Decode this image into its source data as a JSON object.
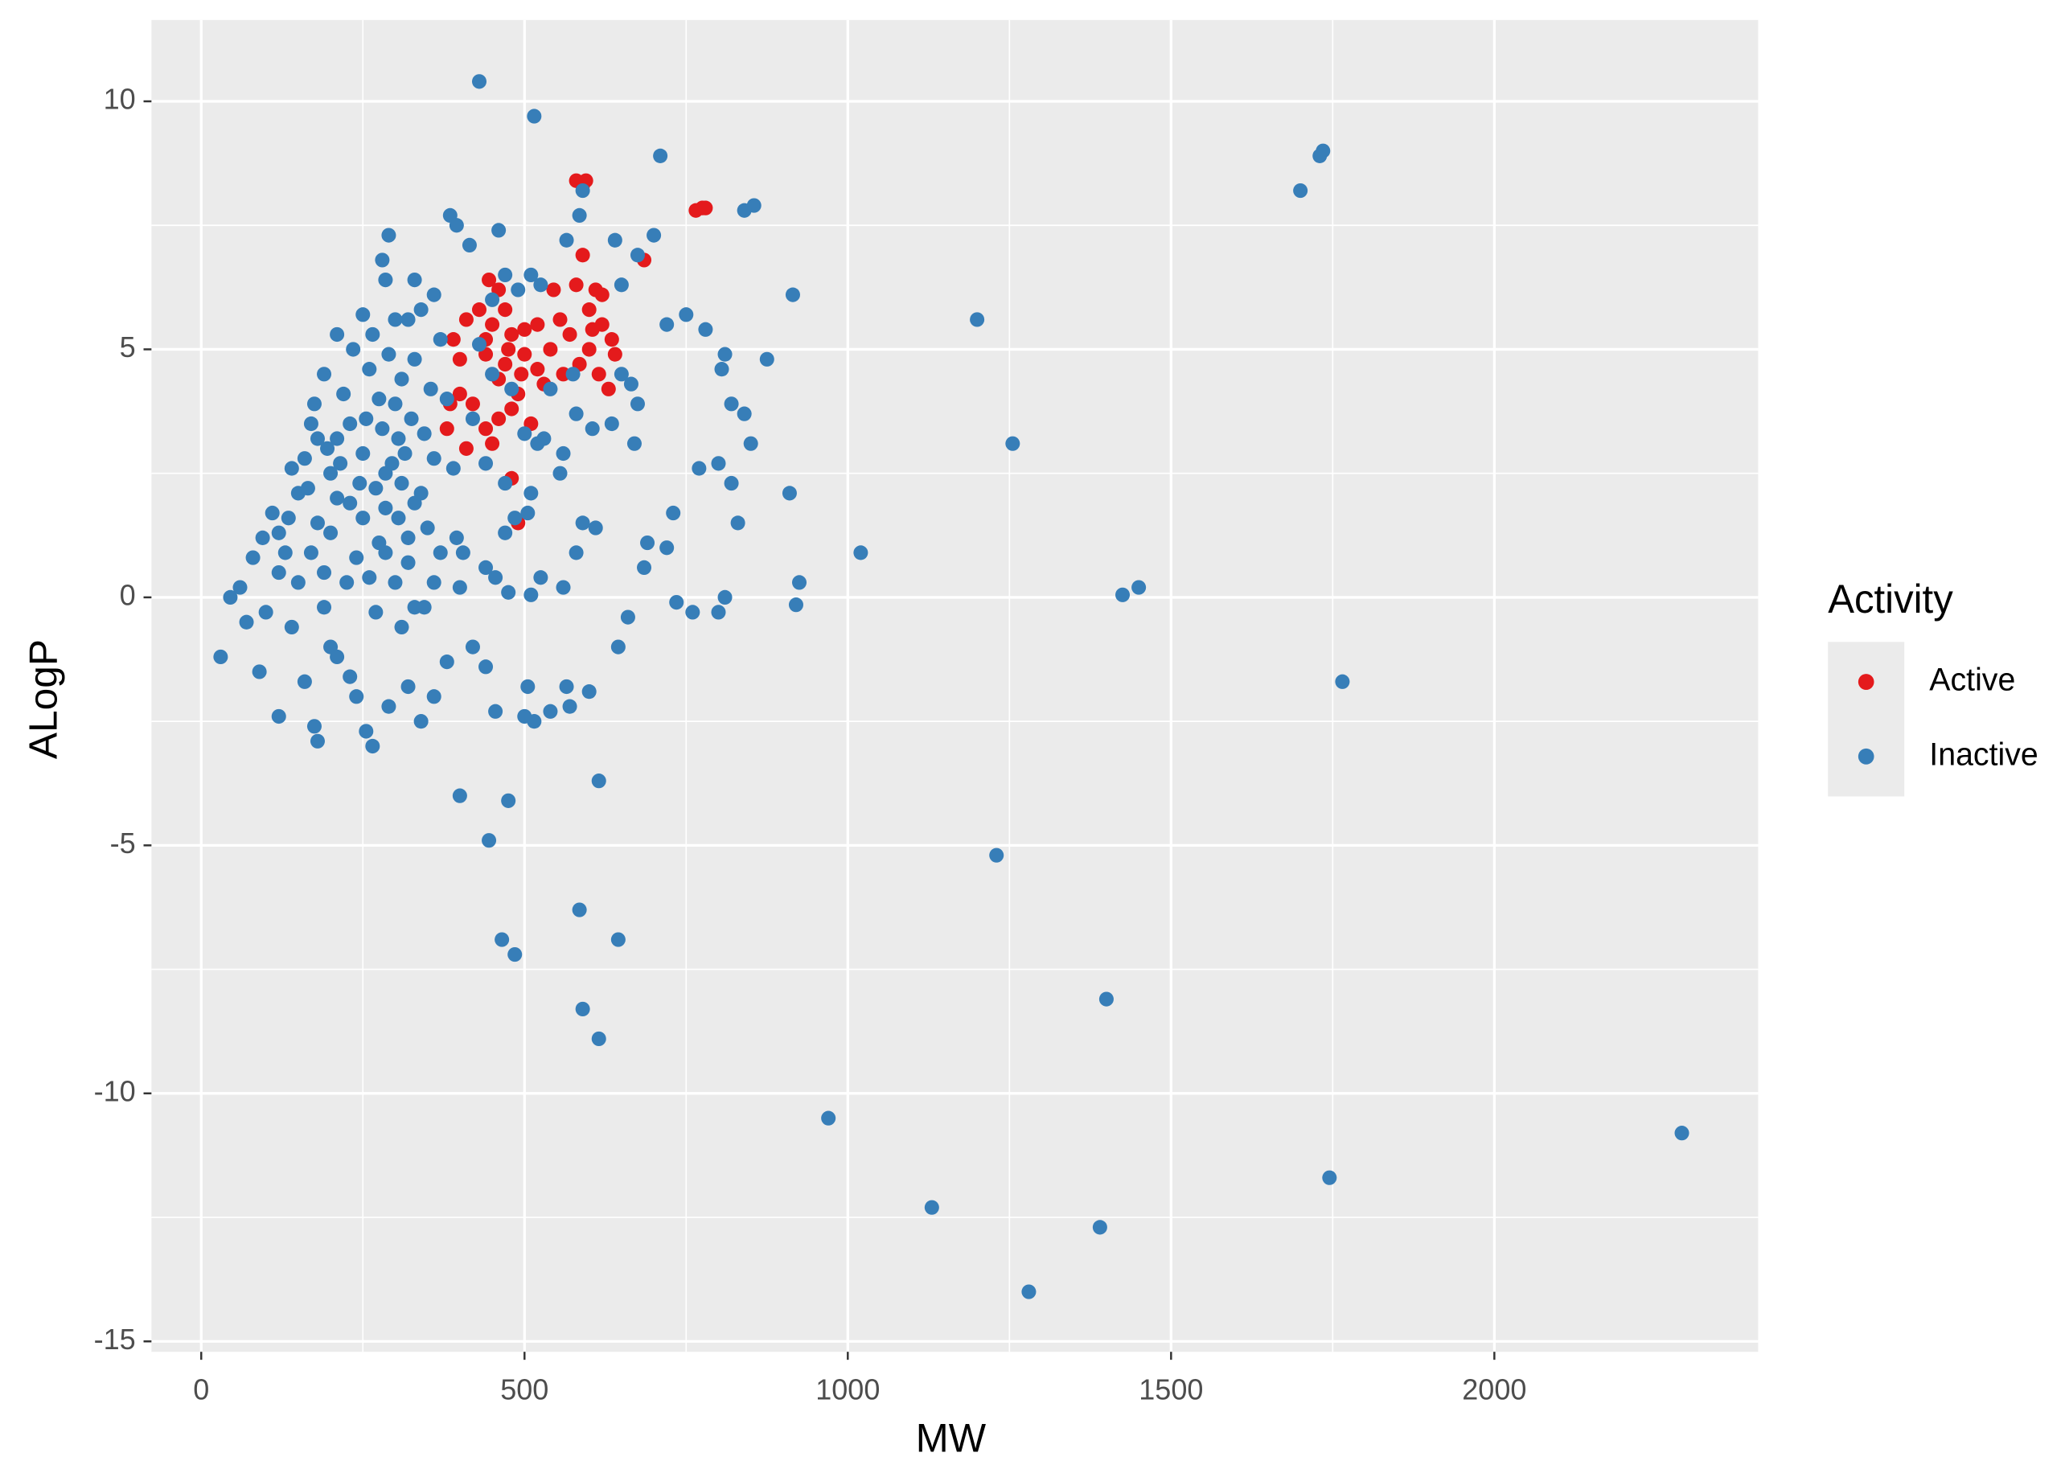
{
  "chart_data": {
    "type": "scatter",
    "x_label": "MW",
    "y_label": "ALogP",
    "xlim": [
      -77,
      2408
    ],
    "ylim": [
      -15.21,
      11.64
    ],
    "xticks": [
      0,
      500,
      1000,
      1500,
      2000
    ],
    "yticks": [
      -15,
      -10,
      -5,
      0,
      5,
      10
    ],
    "grid": true,
    "legend_title": "Activity",
    "legend_position": "right",
    "series": [
      {
        "name": "Active",
        "color": "#E41A1C",
        "x": [
          580,
          595,
          590,
          765,
          775,
          780,
          685,
          590,
          545,
          580,
          610,
          620,
          555,
          600,
          605,
          620,
          635,
          600,
          585,
          615,
          640,
          630,
          570,
          520,
          500,
          480,
          470,
          460,
          445,
          430,
          410,
          390,
          400,
          440,
          460,
          470,
          500,
          520,
          490,
          480,
          460,
          510,
          440,
          420,
          400,
          385,
          380,
          450,
          410,
          490,
          480,
          440,
          540,
          560,
          530,
          450,
          475,
          495
        ],
        "y": [
          8.4,
          8.4,
          8.3,
          7.8,
          7.85,
          7.85,
          6.8,
          6.9,
          6.2,
          6.3,
          6.2,
          6.1,
          5.6,
          5.8,
          5.4,
          5.5,
          5.2,
          5.0,
          4.7,
          4.5,
          4.9,
          4.2,
          5.3,
          5.5,
          5.4,
          5.3,
          5.8,
          6.2,
          6.4,
          5.8,
          5.6,
          5.2,
          4.8,
          4.9,
          4.4,
          4.7,
          4.9,
          4.6,
          4.1,
          3.8,
          3.6,
          3.5,
          3.4,
          3.9,
          4.1,
          3.9,
          3.4,
          3.1,
          3.0,
          1.5,
          2.4,
          5.2,
          5.0,
          4.5,
          4.3,
          5.5,
          5.0,
          4.5
        ]
      },
      {
        "name": "Inactive",
        "color": "#377EB8",
        "x": [
          430,
          515,
          710,
          1735,
          1730,
          1700,
          1200,
          1255,
          1020,
          1425,
          1450,
          1765,
          1230,
          1400,
          970,
          1130,
          1390,
          1280,
          1745,
          2290,
          915,
          875,
          910,
          925,
          920,
          855,
          840,
          820,
          840,
          850,
          830,
          800,
          810,
          760,
          735,
          750,
          780,
          810,
          805,
          770,
          800,
          820,
          730,
          720,
          690,
          685,
          660,
          645,
          610,
          615,
          585,
          645,
          465,
          485,
          590,
          615,
          400,
          475,
          445,
          570,
          540,
          500,
          515,
          600,
          565,
          505,
          455,
          440,
          420,
          380,
          360,
          320,
          340,
          290,
          265,
          255,
          240,
          180,
          175,
          120,
          90,
          30,
          45,
          60,
          70,
          100,
          140,
          200,
          270,
          330,
          310,
          230,
          210,
          160,
          190,
          290,
          280,
          285,
          385,
          395,
          460,
          415,
          470,
          490,
          525,
          510,
          565,
          585,
          590,
          640,
          675,
          650,
          700,
          720,
          665,
          675,
          650,
          605,
          635,
          670,
          580,
          575,
          560,
          530,
          555,
          510,
          505,
          485,
          580,
          590,
          560,
          525,
          510,
          475,
          455,
          440,
          405,
          395,
          370,
          360,
          345,
          400,
          470,
          520,
          540,
          450,
          420,
          450,
          360,
          340,
          320,
          250,
          210,
          330,
          370,
          430,
          480,
          500,
          440,
          470,
          390,
          380,
          110,
          120,
          130,
          150,
          160,
          170,
          175,
          180,
          190,
          200,
          210,
          220,
          230,
          240,
          250,
          255,
          260,
          270,
          275,
          280,
          290,
          295,
          300,
          305,
          310,
          315,
          320,
          325,
          330,
          340,
          345,
          350,
          355,
          360,
          150,
          170,
          200,
          225,
          260,
          285,
          190,
          235,
          265,
          300,
          140,
          195,
          245,
          275,
          310,
          330,
          230,
          210,
          285,
          120,
          95,
          80,
          135,
          165,
          180,
          215,
          250,
          300,
          320,
          285,
          305
        ],
        "y": [
          10.4,
          9.7,
          8.9,
          9.0,
          8.9,
          8.2,
          5.6,
          3.1,
          0.9,
          0.05,
          0.2,
          -1.7,
          -5.2,
          -8.1,
          -10.5,
          -12.3,
          -12.7,
          -14,
          -11.7,
          -10.8,
          6.1,
          4.8,
          2.1,
          0.3,
          -0.15,
          7.9,
          7.8,
          3.9,
          3.7,
          3.1,
          1.5,
          -0.3,
          0,
          -0.3,
          -0.1,
          5.7,
          5.4,
          4.9,
          4.6,
          2.6,
          2.7,
          2.3,
          1.7,
          1.0,
          1.1,
          0.6,
          -0.4,
          -1.0,
          1.4,
          -3.7,
          -6.3,
          -6.9,
          -6.9,
          -7.2,
          -8.3,
          -8.9,
          -4.0,
          -4.1,
          -4.9,
          -2.2,
          -2.3,
          -2.4,
          -2.5,
          -1.9,
          -1.8,
          -1.8,
          -2.3,
          -1.4,
          -1.0,
          -1.3,
          -2.0,
          -1.8,
          -2.5,
          -2.2,
          -3.0,
          -2.7,
          -2.0,
          -2.9,
          -2.6,
          -2.4,
          -1.5,
          -1.2,
          0.0,
          0.2,
          -0.5,
          -0.3,
          -0.6,
          -1.0,
          -0.3,
          -0.2,
          -0.6,
          -1.6,
          -1.2,
          -1.7,
          -0.2,
          7.3,
          6.8,
          6.4,
          7.7,
          7.5,
          7.4,
          7.1,
          6.5,
          6.2,
          6.3,
          6.5,
          7.2,
          7.7,
          8.2,
          7.2,
          6.9,
          6.3,
          7.3,
          5.5,
          4.3,
          3.9,
          4.5,
          3.4,
          3.5,
          3.1,
          3.7,
          4.5,
          2.9,
          3.2,
          2.5,
          2.1,
          1.7,
          1.6,
          0.9,
          1.5,
          0.2,
          0.4,
          0.05,
          0.1,
          0.4,
          0.6,
          0.9,
          1.2,
          0.9,
          0.3,
          -0.2,
          0.2,
          1.3,
          3.1,
          4.2,
          4.5,
          3.6,
          6.0,
          6.1,
          5.8,
          5.6,
          5.7,
          5.3,
          6.4,
          5.2,
          5.1,
          4.2,
          3.3,
          2.7,
          2.3,
          2.6,
          4.0,
          1.7,
          1.3,
          0.9,
          2.1,
          2.8,
          3.5,
          3.9,
          1.5,
          0.5,
          2.5,
          3.2,
          4.1,
          1.9,
          0.8,
          2.9,
          3.6,
          4.6,
          2.2,
          1.1,
          3.4,
          4.9,
          2.7,
          3.9,
          1.6,
          4.4,
          2.9,
          0.7,
          3.6,
          4.8,
          2.1,
          3.3,
          1.4,
          4.2,
          2.8,
          0.3,
          0.9,
          1.3,
          0.3,
          0.4,
          0.9,
          4.5,
          5.0,
          5.3,
          5.6,
          2.6,
          3.0,
          2.3,
          4.0,
          2.3,
          1.9,
          3.5,
          2.0,
          1.8,
          0.5,
          1.2,
          0.8,
          1.6,
          2.2,
          3.2,
          2.7,
          1.6,
          0.3,
          1.2,
          2.5,
          3.2
        ]
      }
    ]
  }
}
